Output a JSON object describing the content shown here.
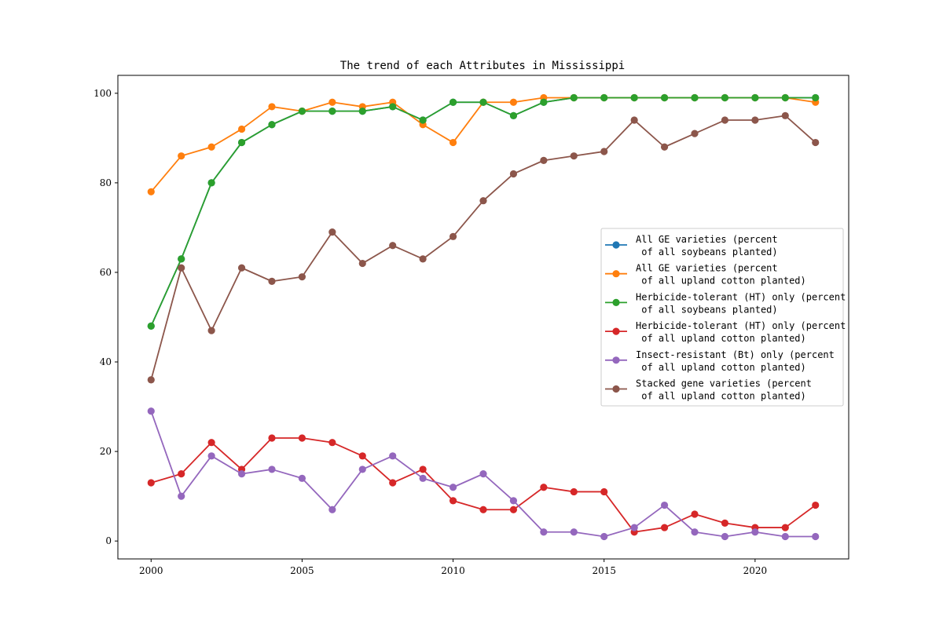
{
  "chart_data": {
    "type": "line",
    "title": "The trend of each Attributes in Mississippi",
    "xlabel": "",
    "ylabel": "",
    "xlim": [
      1998.9,
      2023.1
    ],
    "ylim": [
      -4,
      104
    ],
    "xticks": [
      2000,
      2005,
      2010,
      2015,
      2020
    ],
    "yticks": [
      0,
      20,
      40,
      60,
      80,
      100
    ],
    "grid": false,
    "legend_position": "center-right",
    "x": [
      2000,
      2001,
      2002,
      2003,
      2004,
      2005,
      2006,
      2007,
      2008,
      2009,
      2010,
      2011,
      2012,
      2013,
      2014,
      2015,
      2016,
      2017,
      2018,
      2019,
      2020,
      2021,
      2022
    ],
    "series": [
      {
        "name": "All GE varieties (percent\n of all soybeans planted)",
        "color": "#1f77b4",
        "values": [
          48,
          63,
          80,
          89,
          93,
          96,
          96,
          96,
          97,
          94,
          98,
          98,
          95,
          98,
          99,
          99,
          99,
          99,
          99,
          99,
          99,
          99,
          99
        ]
      },
      {
        "name": "All GE varieties (percent\n of all upland cotton planted)",
        "color": "#ff7f0e",
        "values": [
          78,
          86,
          88,
          92,
          97,
          96,
          98,
          97,
          98,
          93,
          89,
          98,
          98,
          99,
          99,
          99,
          99,
          99,
          99,
          99,
          99,
          99,
          98
        ]
      },
      {
        "name": "Herbicide-tolerant (HT) only (percent\n of all soybeans planted)",
        "color": "#2ca02c",
        "values": [
          48,
          63,
          80,
          89,
          93,
          96,
          96,
          96,
          97,
          94,
          98,
          98,
          95,
          98,
          99,
          99,
          99,
          99,
          99,
          99,
          99,
          99,
          99
        ]
      },
      {
        "name": "Herbicide-tolerant (HT) only (percent\n of all upland cotton planted)",
        "color": "#d62728",
        "values": [
          13,
          15,
          22,
          16,
          23,
          23,
          22,
          19,
          13,
          16,
          9,
          7,
          7,
          12,
          11,
          11,
          2,
          3,
          6,
          4,
          3,
          3,
          8
        ]
      },
      {
        "name": "Insect-resistant (Bt) only (percent\n of all upland cotton planted)",
        "color": "#9467bd",
        "values": [
          29,
          10,
          19,
          15,
          16,
          14,
          7,
          16,
          19,
          14,
          12,
          15,
          9,
          2,
          2,
          1,
          3,
          8,
          2,
          1,
          2,
          1,
          1
        ]
      },
      {
        "name": "Stacked gene varieties (percent\n of all upland cotton planted)",
        "color": "#8c564b",
        "values": [
          36,
          61,
          47,
          61,
          58,
          59,
          69,
          62,
          66,
          63,
          68,
          76,
          82,
          85,
          86,
          87,
          94,
          88,
          91,
          94,
          94,
          95,
          89
        ]
      }
    ]
  }
}
